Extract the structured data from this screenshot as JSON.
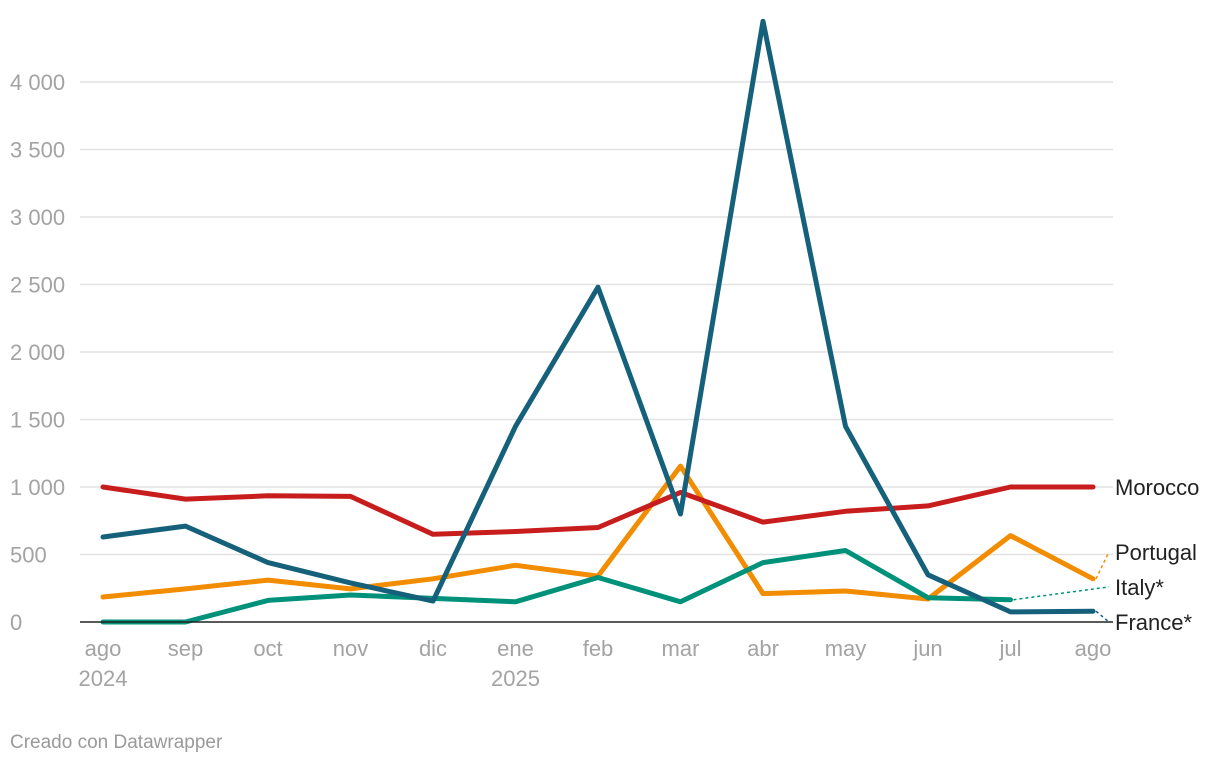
{
  "chart_data": {
    "type": "line",
    "title": "",
    "xlabel": "",
    "ylabel": "",
    "categories": [
      "ago",
      "sep",
      "oct",
      "nov",
      "dic",
      "ene",
      "feb",
      "mar",
      "abr",
      "may",
      "jun",
      "jul",
      "ago"
    ],
    "year_labels": [
      {
        "index": 0,
        "label": "2024"
      },
      {
        "index": 5,
        "label": "2025"
      }
    ],
    "yticks": [
      0,
      500,
      1000,
      1500,
      2000,
      2500,
      3000,
      3500,
      4000
    ],
    "ytick_labels": [
      "0",
      "500",
      "1 000",
      "1 500",
      "2 000",
      "2 500",
      "3 000",
      "3 500",
      "4 000"
    ],
    "ylim": [
      0,
      4500
    ],
    "grid": true,
    "legend": "direct labels at right end of lines",
    "series": [
      {
        "name": "Morocco",
        "color": "#c71e1d",
        "label_value": 1000,
        "values": [
          1000,
          910,
          935,
          930,
          650,
          670,
          700,
          960,
          740,
          820,
          860,
          1000,
          1000
        ]
      },
      {
        "name": "Portugal",
        "color": "#f28c00",
        "label_value": 520,
        "values": [
          185,
          245,
          310,
          245,
          320,
          420,
          340,
          1155,
          210,
          230,
          170,
          640,
          320
        ]
      },
      {
        "name": "Italy*",
        "color": "#00917a",
        "label_value": 260,
        "values": [
          0,
          0,
          160,
          200,
          175,
          150,
          330,
          150,
          440,
          530,
          180,
          165,
          null
        ]
      },
      {
        "name": "France*",
        "color": "#15607a",
        "label_value": 0,
        "values": [
          630,
          710,
          440,
          290,
          155,
          1450,
          2480,
          800,
          4450,
          1450,
          350,
          75,
          80
        ]
      }
    ]
  },
  "credit": "Creado con Datawrapper"
}
